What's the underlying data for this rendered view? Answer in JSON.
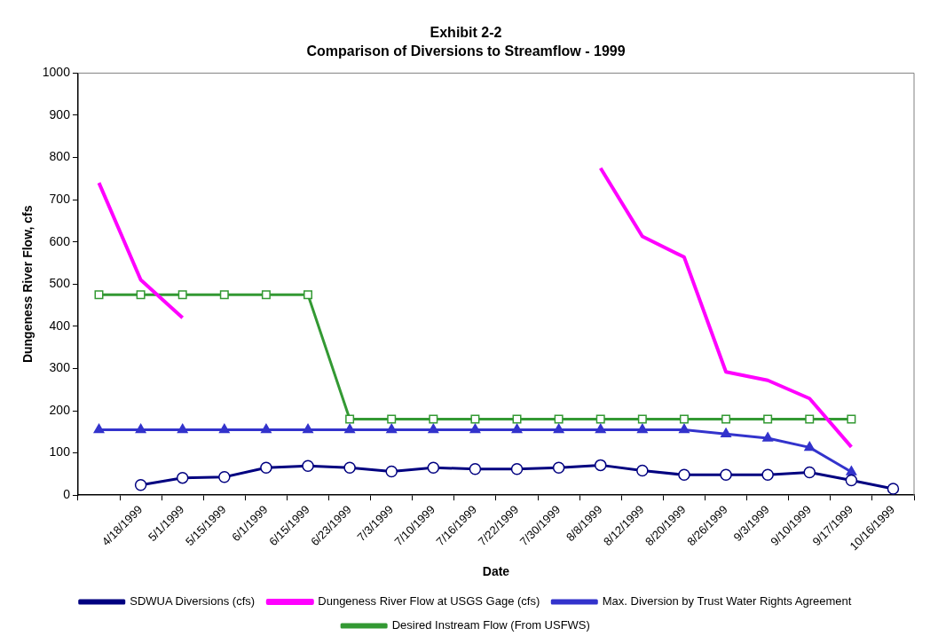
{
  "chart_data": {
    "type": "line",
    "title": "Exhibit 2-2",
    "subtitle": "Comparison of Diversions to Streamflow - 1999",
    "xlabel": "Date",
    "ylabel": "Dungeness River Flow, cfs",
    "categories": [
      null,
      "4/18/1999",
      "5/1/1999",
      "5/15/1999",
      "6/1/1999",
      "6/15/1999",
      "6/23/1999",
      "7/3/1999",
      "7/10/1999",
      "7/16/1999",
      "7/22/1999",
      "7/30/1999",
      "8/8/1999",
      "8/12/1999",
      "8/20/1999",
      "8/26/1999",
      "9/3/1999",
      "9/10/1999",
      "9/17/1999",
      "10/16/1999"
    ],
    "series": [
      {
        "name": "SDWUA Diversions (cfs)",
        "color": "#000080",
        "marker": "circle",
        "values": [
          null,
          24,
          41,
          43,
          65,
          69,
          65,
          56,
          65,
          62,
          62,
          65,
          71,
          58,
          48,
          48,
          48,
          54,
          35,
          15
        ]
      },
      {
        "name": "Dungeness River Flow at USGS Gage (cfs)",
        "color": "#ff00ff",
        "marker": "none",
        "values": [
          740,
          510,
          420,
          null,
          null,
          null,
          null,
          null,
          null,
          null,
          null,
          null,
          775,
          613,
          564,
          292,
          272,
          229,
          114,
          null
        ]
      },
      {
        "name": "Max. Diversion by Trust Water Rights Agreement",
        "color": "#3333cc",
        "marker": "triangle",
        "values": [
          155,
          155,
          155,
          155,
          155,
          155,
          155,
          155,
          155,
          155,
          155,
          155,
          155,
          155,
          155,
          145,
          135,
          113,
          55,
          null
        ]
      },
      {
        "name": "Desired Instream Flow (From USFWS)",
        "color": "#339933",
        "marker": "square",
        "values": [
          475,
          475,
          475,
          475,
          475,
          475,
          180,
          180,
          180,
          180,
          180,
          180,
          180,
          180,
          180,
          180,
          180,
          180,
          180,
          null
        ]
      }
    ],
    "ylim": [
      0,
      1000
    ],
    "yticks": [
      0,
      100,
      200,
      300,
      400,
      500,
      600,
      700,
      800,
      900,
      1000
    ],
    "grid": false,
    "legend": "bottom"
  }
}
